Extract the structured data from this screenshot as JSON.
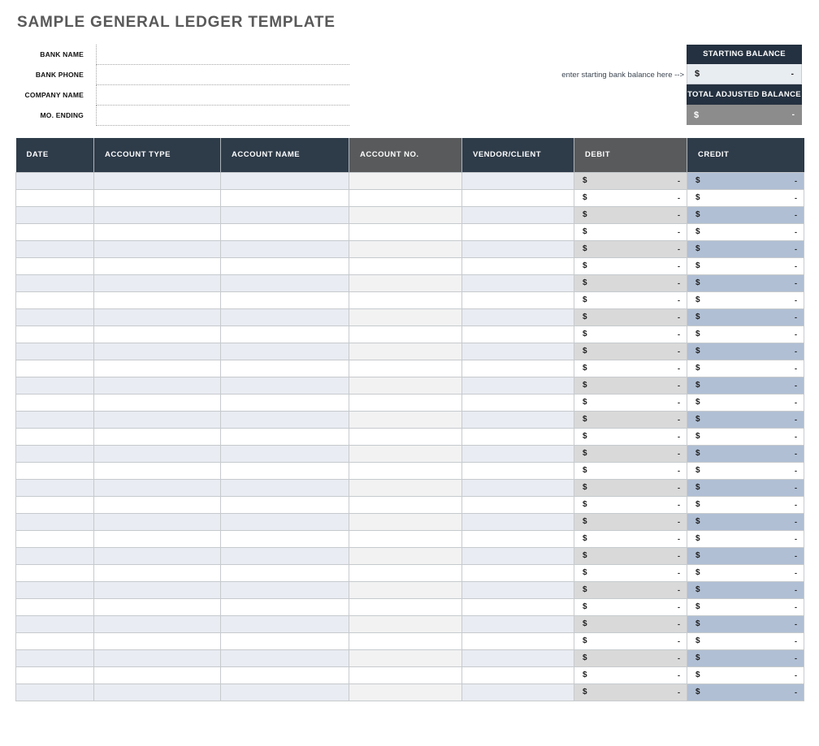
{
  "page": {
    "title": "SAMPLE GENERAL LEDGER TEMPLATE"
  },
  "form": {
    "fields": [
      {
        "id": "bank-name",
        "label": "BANK NAME",
        "value": ""
      },
      {
        "id": "bank-phone",
        "label": "BANK PHONE",
        "value": ""
      },
      {
        "id": "company-name",
        "label": "COMPANY NAME",
        "value": ""
      },
      {
        "id": "mo-ending",
        "label": "MO. ENDING",
        "value": ""
      }
    ]
  },
  "balance_panel": {
    "starting_header": "STARTING BALANCE",
    "starting_currency": "$",
    "starting_value": "-",
    "hint": "enter starting bank balance here -->",
    "total_header": "TOTAL ADJUSTED BALANCE",
    "total_currency": "$",
    "total_value": "-"
  },
  "table": {
    "columns": [
      {
        "id": "date",
        "label": "DATE",
        "variant": "navy",
        "type": "text"
      },
      {
        "id": "account-type",
        "label": "ACCOUNT TYPE",
        "variant": "navy",
        "type": "text"
      },
      {
        "id": "account-name",
        "label": "ACCOUNT NAME",
        "variant": "navy",
        "type": "text"
      },
      {
        "id": "account-no",
        "label": "ACCOUNT NO.",
        "variant": "gray",
        "type": "text"
      },
      {
        "id": "vendor-client",
        "label": "VENDOR/CLIENT",
        "variant": "navy",
        "type": "text"
      },
      {
        "id": "debit",
        "label": "DEBIT",
        "variant": "gray",
        "type": "amount"
      },
      {
        "id": "credit",
        "label": "CREDIT",
        "variant": "navy",
        "type": "amount"
      }
    ],
    "row_count": 31,
    "currency_symbol": "$",
    "empty_amount": "-"
  },
  "colors": {
    "title_gray": "#595959",
    "header_navy": "#2e3b49",
    "header_gray": "#595a5c",
    "panel_navy": "#243140",
    "row_shade_blue": "#e9ecf2",
    "account_no_shade": "#f2f2f2",
    "debit_shade": "#d9d9d9",
    "debit_light": "#f2f2f0",
    "credit_shade": "#b0bfd4",
    "credit_light": "#e9edf3",
    "starting_value_bg": "#e8edf2",
    "total_row_gray": "#8c8c8c",
    "grid_border": "#c6cacd"
  }
}
